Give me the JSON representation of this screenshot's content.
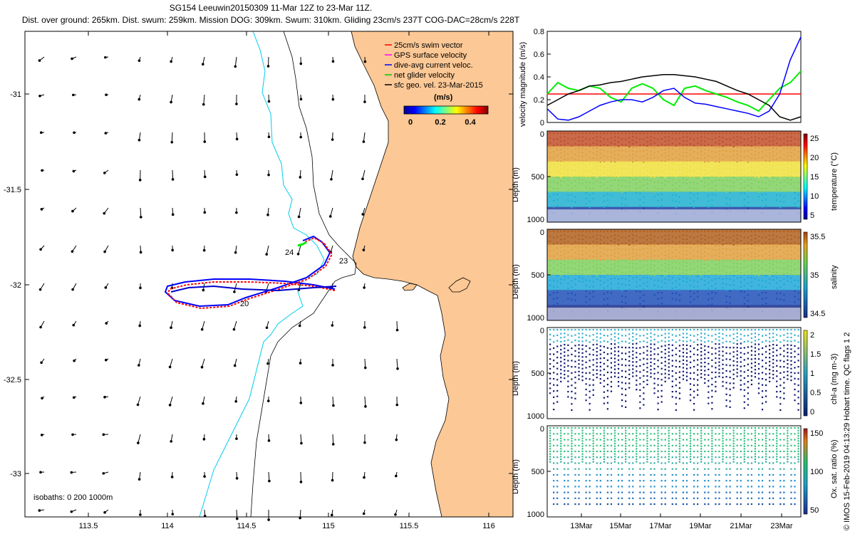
{
  "title_line1": "SG154 Leeuwin20150309 11-Mar 12Z to 23-Mar 11Z.",
  "title_line2": "Dist. over ground: 265km. Dist. swum: 259km. Mission DOG: 309km. Swum: 310km. Gliding 23cm/s 237T COG-DAC=28cm/s 228T",
  "side_label": "© IMOS 15-Feb-2019 04:13:29 Hobart time. QC flags 1  2",
  "map": {
    "x_ticks": [
      "113.5",
      "114",
      "114.5",
      "115",
      "115.5",
      "116"
    ],
    "y_ticks": [
      "-31",
      "-31.5",
      "-32",
      "-32.5",
      "-33"
    ],
    "legend": [
      {
        "label": "25cm/s swim vector",
        "color": "#ff0000"
      },
      {
        "label": "GPS surface velocity",
        "color": "#ff00ff"
      },
      {
        "label": "dive-avg current veloc.",
        "color": "#0000ff"
      },
      {
        "label": "net glider velocity",
        "color": "#00cc00"
      },
      {
        "label": "sfc geo. vel. 23-Mar-2015",
        "color": "#000000"
      }
    ],
    "colorbar_title": "(m/s)",
    "colorbar_ticks": [
      "0",
      "0.2",
      "0.4"
    ],
    "isobaths_label": "isobaths: 0   200  1000m",
    "day_labels": [
      "20",
      "23",
      "24"
    ],
    "land_color": "#fcc895"
  },
  "chart_data": [
    {
      "type": "line",
      "title": "velocity magnitude",
      "xlabel": "",
      "ylabel": "velocity magnitude (m/s)",
      "ylim": [
        0,
        0.8
      ],
      "y_ticks": [
        "0",
        "0.2",
        "0.4",
        "0.6",
        "0.8"
      ],
      "x": [
        11.5,
        12,
        12.5,
        13,
        13.5,
        14,
        14.5,
        15,
        15.5,
        16,
        16.5,
        17,
        17.5,
        18,
        18.5,
        19,
        19.5,
        20,
        20.5,
        21,
        21.5,
        22,
        22.5,
        23,
        23.5
      ],
      "series": [
        {
          "name": "swim speed 25cm/s",
          "color": "#ff0000",
          "values": [
            0.25,
            0.25,
            0.25,
            0.25,
            0.25,
            0.25,
            0.25,
            0.25,
            0.25,
            0.25,
            0.25,
            0.25,
            0.25,
            0.25,
            0.25,
            0.25,
            0.25,
            0.25,
            0.25,
            0.25,
            0.25,
            0.25,
            0.25,
            0.25,
            0.25
          ]
        },
        {
          "name": "net glider velocity",
          "color": "#00ee00",
          "values": [
            0.25,
            0.35,
            0.3,
            0.28,
            0.32,
            0.3,
            0.22,
            0.18,
            0.3,
            0.34,
            0.3,
            0.2,
            0.15,
            0.3,
            0.32,
            0.28,
            0.25,
            0.22,
            0.18,
            0.15,
            0.1,
            0.2,
            0.3,
            0.35,
            0.45
          ]
        },
        {
          "name": "dive-avg current",
          "color": "#0000ff",
          "values": [
            0.12,
            0.03,
            0.02,
            0.05,
            0.1,
            0.15,
            0.18,
            0.2,
            0.2,
            0.18,
            0.22,
            0.28,
            0.3,
            0.22,
            0.17,
            0.16,
            0.14,
            0.12,
            0.1,
            0.08,
            0.05,
            0.1,
            0.25,
            0.55,
            0.75
          ]
        },
        {
          "name": "sfc geo. vel.",
          "color": "#000000",
          "values": [
            0.15,
            0.2,
            0.25,
            0.28,
            0.32,
            0.33,
            0.35,
            0.36,
            0.38,
            0.4,
            0.41,
            0.42,
            0.42,
            0.41,
            0.4,
            0.38,
            0.36,
            0.32,
            0.28,
            0.25,
            0.2,
            0.15,
            0.05,
            0.02,
            0.05
          ]
        }
      ]
    },
    {
      "type": "scatter",
      "title": "temperature section",
      "ylabel": "Depth (m)",
      "colorbar_label": "temperature (°C)",
      "colorbar_ticks": [
        "25",
        "20",
        "15",
        "10",
        "5"
      ],
      "y_ticks": [
        "0",
        "500",
        "1000"
      ],
      "ylim": [
        1000,
        0
      ]
    },
    {
      "type": "scatter",
      "title": "salinity section",
      "ylabel": "Depth (m)",
      "colorbar_label": "salinity",
      "colorbar_ticks": [
        "35.5",
        "35",
        "34.5"
      ],
      "y_ticks": [
        "0",
        "500",
        "1000"
      ],
      "ylim": [
        1000,
        0
      ]
    },
    {
      "type": "scatter",
      "title": "chlorophyll section",
      "ylabel": "Depth (m)",
      "colorbar_label": "chl-a (mg m-3)",
      "colorbar_ticks": [
        "2",
        "1.5",
        "1",
        "0.5",
        "0"
      ],
      "y_ticks": [
        "0",
        "500",
        "1000"
      ],
      "ylim": [
        1000,
        0
      ]
    },
    {
      "type": "scatter",
      "title": "oxygen section",
      "ylabel": "Depth (m)",
      "colorbar_label": "Ox. sat. ratio (%)",
      "colorbar_ticks": [
        "150",
        "100",
        "50"
      ],
      "y_ticks": [
        "0",
        "500",
        "1000"
      ],
      "ylim": [
        1000,
        0
      ],
      "x_ticks": [
        "13Mar",
        "15Mar",
        "17Mar",
        "19Mar",
        "21Mar",
        "23Mar"
      ]
    }
  ]
}
